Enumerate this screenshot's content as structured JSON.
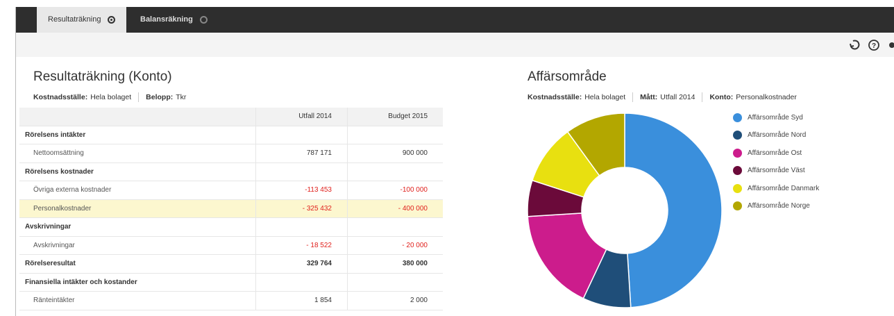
{
  "tabs": [
    {
      "label": "Resultaträkning",
      "active": true
    },
    {
      "label": "Balansräkning",
      "active": false
    }
  ],
  "report": {
    "title": "Resultaträkning (Konto)",
    "filters": [
      {
        "label": "Kostnadsställe:",
        "value": "Hela bolaget"
      },
      {
        "label": "Belopp:",
        "value": "Tkr"
      }
    ],
    "table": {
      "columns": [
        "Utfall 2014",
        "Budget 2015"
      ],
      "rows": [
        {
          "label": "Rörelsens intäkter",
          "kind": "section"
        },
        {
          "label": "Nettoomsättning",
          "kind": "item",
          "values": [
            "787 171",
            "900 000"
          ]
        },
        {
          "label": "Rörelsens kostnader",
          "kind": "section"
        },
        {
          "label": "Övriga externa kostnader",
          "kind": "item",
          "values": [
            "-113 453",
            "-100 000"
          ]
        },
        {
          "label": "Personalkostnader",
          "kind": "highlight",
          "values": [
            "- 325 432",
            "- 400 000"
          ]
        },
        {
          "label": "Avskrivningar",
          "kind": "section"
        },
        {
          "label": "Avskrivningar",
          "kind": "item",
          "values": [
            "- 18 522",
            "- 20 000"
          ]
        },
        {
          "label": "Rörelseresultat",
          "kind": "total",
          "values": [
            "329 764",
            "380 000"
          ]
        },
        {
          "label": "Finansiella intäkter och kostander",
          "kind": "section"
        },
        {
          "label": "Ränteintäkter",
          "kind": "item",
          "values": [
            "1 854",
            "2 000"
          ]
        }
      ]
    }
  },
  "chart_data": {
    "type": "pie",
    "donut": true,
    "legend": "right",
    "title": "Affärsområde",
    "filters": [
      {
        "label": "Kostnadsställe:",
        "value": "Hela bolaget"
      },
      {
        "label": "Mått:",
        "value": "Utfall 2014"
      },
      {
        "label": "Konto:",
        "value": "Personalkostnader"
      }
    ],
    "categories": [
      "Affärsområde Syd",
      "Affärsområde Nord",
      "Affärsområde Ost",
      "Affärsområde Väst",
      "Affärsområde Danmark",
      "Affärsområde Norge"
    ],
    "values": [
      49,
      8,
      17,
      6,
      10,
      10
    ],
    "colors": [
      "#3a8fdc",
      "#1f4e79",
      "#cc1c8c",
      "#6b0a3a",
      "#e8e010",
      "#b3a700"
    ]
  }
}
